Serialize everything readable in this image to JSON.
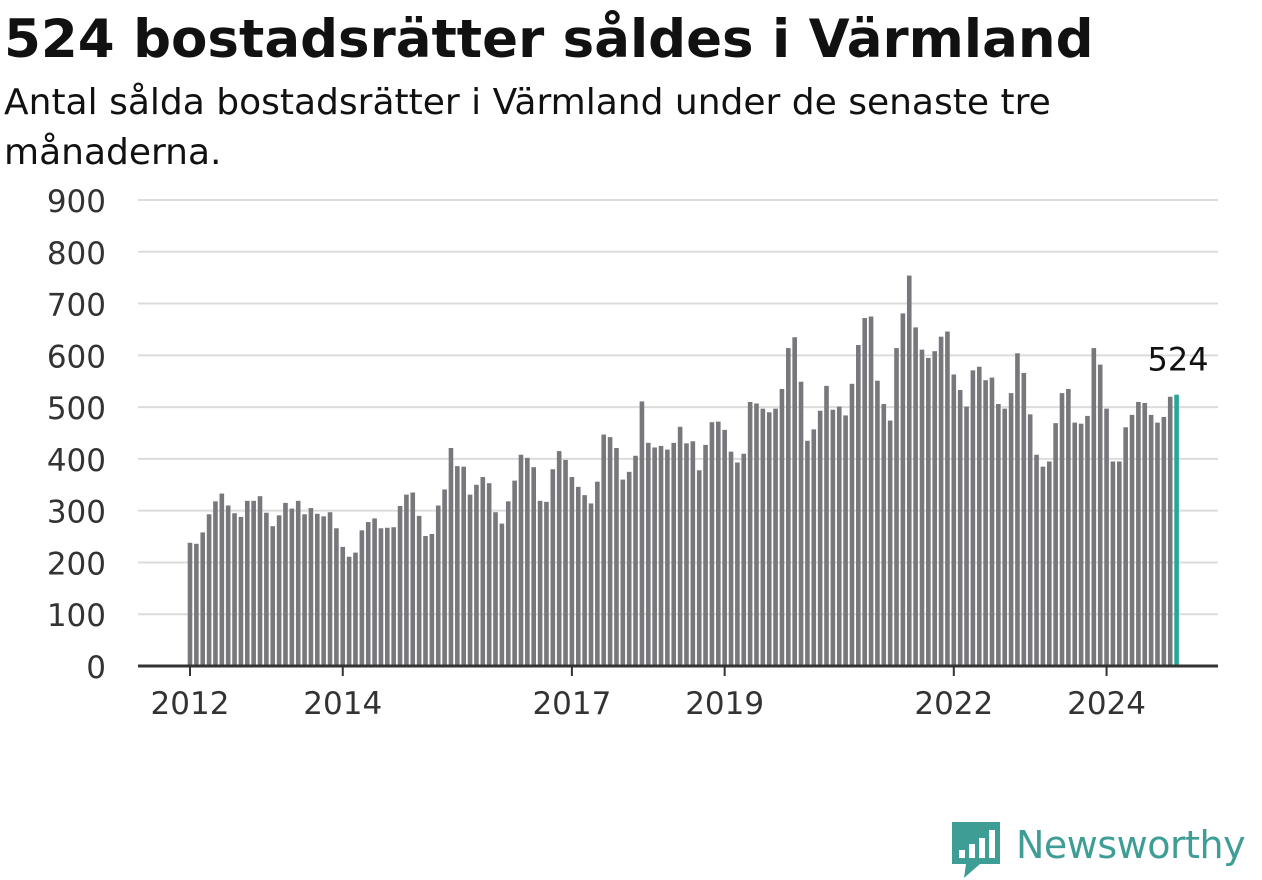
{
  "title": "524 bostadsrätter såldes i Värmland",
  "subtitle": "Antal sålda bostadsrätter i Värmland under de senaste tre månaderna.",
  "brand": "Newsworthy",
  "colors": {
    "bar": "#77777c",
    "highlight": "#2aa59a",
    "grid": "#dcdcdc",
    "axis": "#333333",
    "brand": "#3e9e96"
  },
  "chart_data": {
    "type": "bar",
    "title": "524 bostadsrätter såldes i Värmland",
    "subtitle": "Antal sålda bostadsrätter i Värmland under de senaste tre månaderna.",
    "xlabel": "",
    "ylabel": "",
    "ylim": [
      0,
      900
    ],
    "yticks": [
      0,
      100,
      200,
      300,
      400,
      500,
      600,
      700,
      800,
      900
    ],
    "x_tick_labels": [
      {
        "label": "2012",
        "index": 0
      },
      {
        "label": "2014",
        "index": 24
      },
      {
        "label": "2017",
        "index": 60
      },
      {
        "label": "2019",
        "index": 84
      },
      {
        "label": "2022",
        "index": 120
      },
      {
        "label": "2024",
        "index": 144
      }
    ],
    "grid": true,
    "frequency": "monthly",
    "start": "2012-01",
    "end": "2024-12",
    "highlight_last": true,
    "last_label": "524",
    "values": [
      238,
      236,
      258,
      293,
      318,
      333,
      310,
      295,
      288,
      319,
      319,
      328,
      296,
      270,
      291,
      315,
      304,
      319,
      293,
      305,
      294,
      289,
      297,
      266,
      230,
      211,
      219,
      262,
      278,
      285,
      266,
      267,
      268,
      309,
      331,
      335,
      290,
      251,
      255,
      310,
      341,
      421,
      386,
      385,
      331,
      350,
      365,
      353,
      297,
      275,
      318,
      358,
      408,
      402,
      384,
      319,
      317,
      380,
      415,
      398,
      365,
      346,
      330,
      314,
      356,
      447,
      442,
      421,
      360,
      375,
      406,
      511,
      431,
      422,
      425,
      418,
      431,
      462,
      430,
      434,
      378,
      427,
      471,
      472,
      456,
      414,
      393,
      410,
      510,
      507,
      497,
      490,
      497,
      535,
      614,
      635,
      549,
      435,
      457,
      493,
      541,
      495,
      501,
      484,
      545,
      620,
      672,
      675,
      551,
      506,
      474,
      614,
      681,
      754,
      654,
      611,
      595,
      608,
      636,
      646,
      563,
      533,
      501,
      571,
      578,
      552,
      557,
      506,
      497,
      527,
      604,
      566,
      486,
      408,
      385,
      395,
      469,
      527,
      535,
      470,
      468,
      483,
      614,
      582,
      497,
      395,
      395,
      461,
      485,
      510,
      508,
      485,
      470,
      481,
      520,
      524
    ]
  }
}
